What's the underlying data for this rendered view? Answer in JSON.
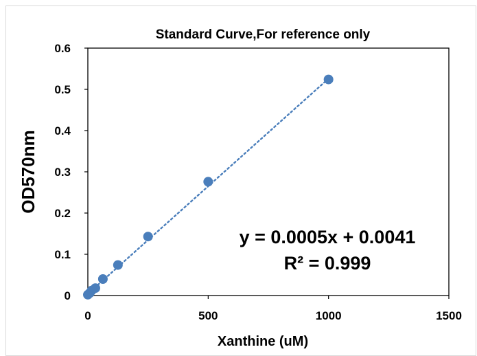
{
  "chart_data": {
    "type": "scatter",
    "title": "Standard Curve,For reference only",
    "xlabel": "Xanthine (uM)",
    "ylabel": "OD570nm",
    "xlim": [
      0,
      1500
    ],
    "ylim": [
      0,
      0.6
    ],
    "x_ticks": [
      "0",
      "500",
      "1000",
      "1500"
    ],
    "y_ticks": [
      "0",
      "0.1",
      "0.2",
      "0.3",
      "0.4",
      "0.5",
      "0.6"
    ],
    "grid": false,
    "legend": "none",
    "series": [
      {
        "x": [
          0,
          7.8,
          15.6,
          31.25,
          62.5,
          125,
          250,
          500,
          1000
        ],
        "y": [
          0.002,
          0.006,
          0.012,
          0.018,
          0.04,
          0.074,
          0.143,
          0.276,
          0.524
        ],
        "color": "#4a7ebb"
      }
    ],
    "trendline": {
      "style": "dotted",
      "color": "#4a7ebb",
      "slope": 0.0005,
      "intercept": 0.0041,
      "x_range": [
        0,
        1000
      ],
      "end_y": 0.526
    },
    "annotations": [
      "y = 0.0005x + 0.0041",
      "R² = 0.999"
    ]
  }
}
